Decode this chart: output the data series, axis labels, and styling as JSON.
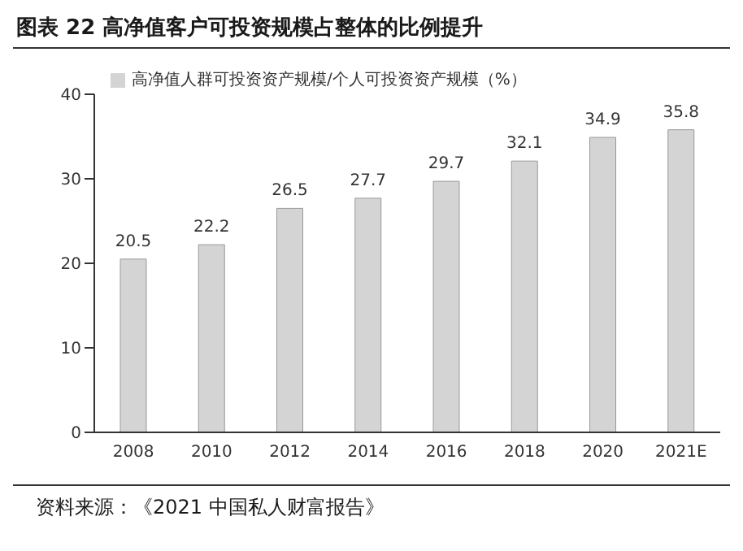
{
  "chart_data": {
    "type": "bar",
    "title": "图表 22 高净值客户可投资规模占整体的比例提升",
    "categories": [
      "2008",
      "2010",
      "2012",
      "2014",
      "2016",
      "2018",
      "2020",
      "2021E"
    ],
    "series": [
      {
        "name": "高净值人群可投资资产规模/个人可投资资产规模（%）",
        "color": "#d4d4d4",
        "values": [
          20.5,
          22.2,
          26.5,
          27.7,
          29.7,
          32.1,
          34.9,
          35.8
        ]
      }
    ],
    "ylim": [
      0,
      40
    ],
    "yticks": [
      0,
      10,
      20,
      30,
      40
    ],
    "grid": false,
    "legend": "top left",
    "data_labels": true,
    "annotations": [
      "资料来源：《2021 中国私人财富报告》"
    ]
  }
}
